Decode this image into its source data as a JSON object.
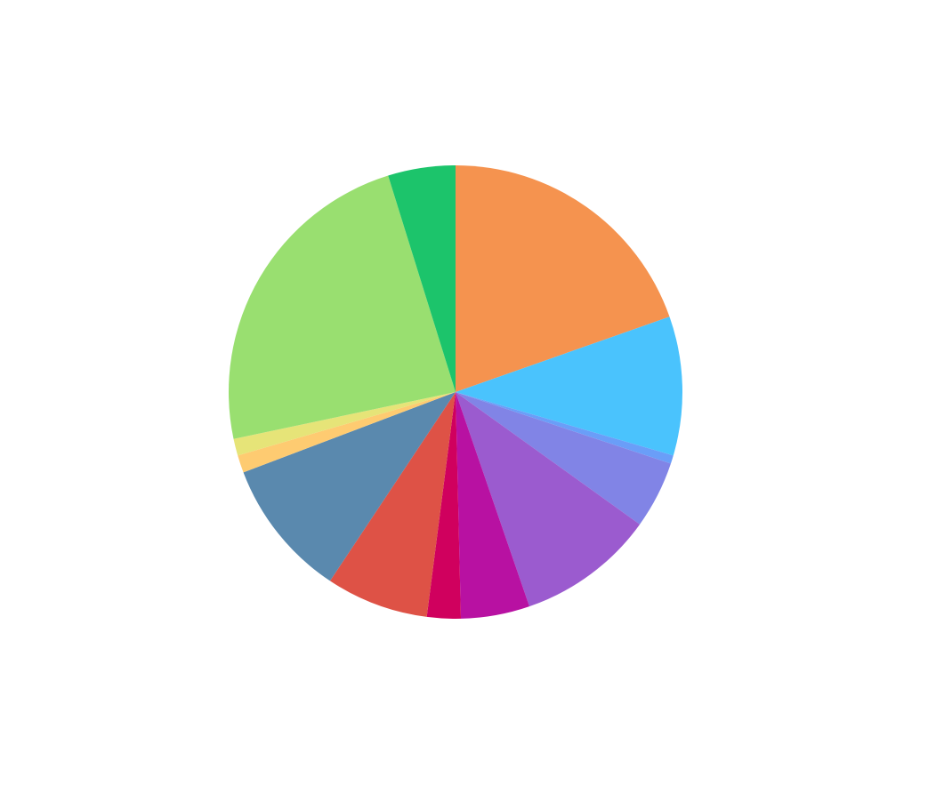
{
  "chart_data": {
    "type": "pie",
    "values": [
      19.6,
      9.9,
      0.6,
      4.8,
      9.8,
      4.9,
      2.4,
      7.3,
      9.9,
      1.25,
      1.2,
      23.5,
      4.8
    ],
    "colors": [
      "#f5934f",
      "#4ac3fd",
      "#6a9ef8",
      "#8184e6",
      "#9b5bcf",
      "#b811a2",
      "#d0005e",
      "#de5246",
      "#5a89ae",
      "#fecb71",
      "#e6e478",
      "#99df70",
      "#1cc46b"
    ]
  }
}
